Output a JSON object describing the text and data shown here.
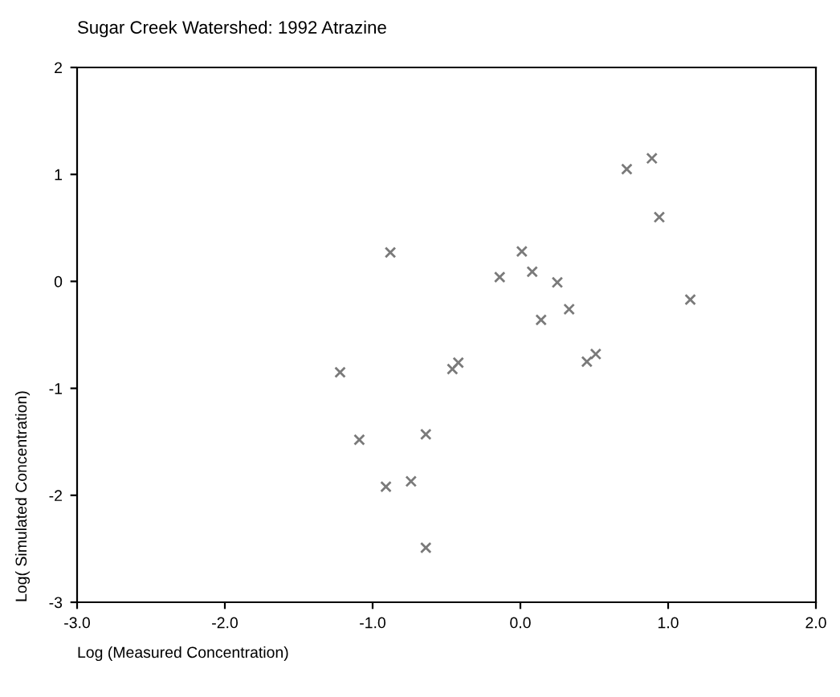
{
  "chart_data": {
    "type": "scatter",
    "title": "Sugar Creek Watershed: 1992 Atrazine",
    "xlabel": "Log (Measured Concentration)",
    "ylabel": "Log( Simulated Concentration)",
    "x": [
      0.72,
      0.89,
      0.94,
      -0.88,
      0.01,
      -0.14,
      0.08,
      0.25,
      0.33,
      0.14,
      1.15,
      0.45,
      0.51,
      -0.46,
      -0.42,
      -1.22,
      -1.09,
      -0.64,
      -0.91,
      -0.74,
      -0.64
    ],
    "values": [
      1.05,
      1.15,
      0.6,
      0.27,
      0.28,
      0.04,
      0.09,
      -0.01,
      -0.26,
      -0.36,
      -0.17,
      -0.75,
      -0.68,
      -0.82,
      -0.76,
      -0.85,
      -1.48,
      -1.43,
      -1.92,
      -1.87,
      -2.49
    ],
    "color": "#7a7a7a",
    "marker": "cross",
    "xlim": [
      -3,
      2
    ],
    "xticks": [
      {
        "value": -3,
        "label": "-3.0"
      },
      {
        "value": -2,
        "label": "-2.0"
      },
      {
        "value": -1,
        "label": "-1.0"
      },
      {
        "value": 0,
        "label": "0.0"
      },
      {
        "value": 1,
        "label": "1.0"
      },
      {
        "value": 2,
        "label": "2.0"
      }
    ],
    "ylim": [
      -3,
      2
    ],
    "yticks": [
      -3,
      -2,
      -1,
      0,
      1,
      2
    ],
    "grid": false,
    "legend": false
  }
}
